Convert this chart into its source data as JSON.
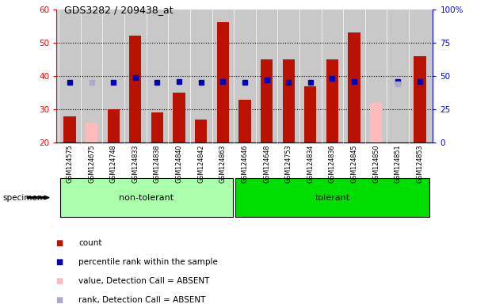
{
  "title": "GDS3282 / 209438_at",
  "samples": [
    "GSM124575",
    "GSM124675",
    "GSM124748",
    "GSM124833",
    "GSM124838",
    "GSM124840",
    "GSM124842",
    "GSM124863",
    "GSM124646",
    "GSM124648",
    "GSM124753",
    "GSM124834",
    "GSM124836",
    "GSM124845",
    "GSM124850",
    "GSM124851",
    "GSM124853"
  ],
  "count_values": [
    28,
    0,
    30,
    52,
    29,
    35,
    27,
    56,
    33,
    45,
    45,
    37,
    45,
    53,
    0,
    0,
    46
  ],
  "count_absent": [
    0,
    26,
    0,
    0,
    0,
    0,
    0,
    0,
    0,
    0,
    0,
    0,
    0,
    0,
    32,
    0,
    0
  ],
  "rank_values": [
    45,
    0,
    45,
    49,
    45,
    46,
    45,
    46,
    45,
    47,
    45,
    45,
    48,
    46,
    0,
    46,
    46
  ],
  "rank_absent": [
    0,
    45,
    0,
    0,
    0,
    0,
    0,
    0,
    0,
    0,
    0,
    0,
    0,
    0,
    0,
    44,
    0
  ],
  "groups": [
    "non-tolerant",
    "non-tolerant",
    "non-tolerant",
    "non-tolerant",
    "non-tolerant",
    "non-tolerant",
    "non-tolerant",
    "non-tolerant",
    "tolerant",
    "tolerant",
    "tolerant",
    "tolerant",
    "tolerant",
    "tolerant",
    "tolerant",
    "tolerant",
    "tolerant"
  ],
  "ylim_left": [
    20,
    60
  ],
  "ylim_right": [
    0,
    100
  ],
  "bar_color_present": "#BB1100",
  "bar_color_absent": "#FFBBBB",
  "rank_color_present": "#0000BB",
  "rank_color_absent": "#AAAACC",
  "chart_bg": "#C8C8C8",
  "label_bg": "#C8C8C8",
  "group_color_nontolerant": "#AAFFAA",
  "group_color_tolerant": "#00DD00",
  "legend_items": [
    {
      "label": "count",
      "color": "#BB1100"
    },
    {
      "label": "percentile rank within the sample",
      "color": "#0000BB"
    },
    {
      "label": "value, Detection Call = ABSENT",
      "color": "#FFBBBB"
    },
    {
      "label": "rank, Detection Call = ABSENT",
      "color": "#AAAACC"
    }
  ]
}
